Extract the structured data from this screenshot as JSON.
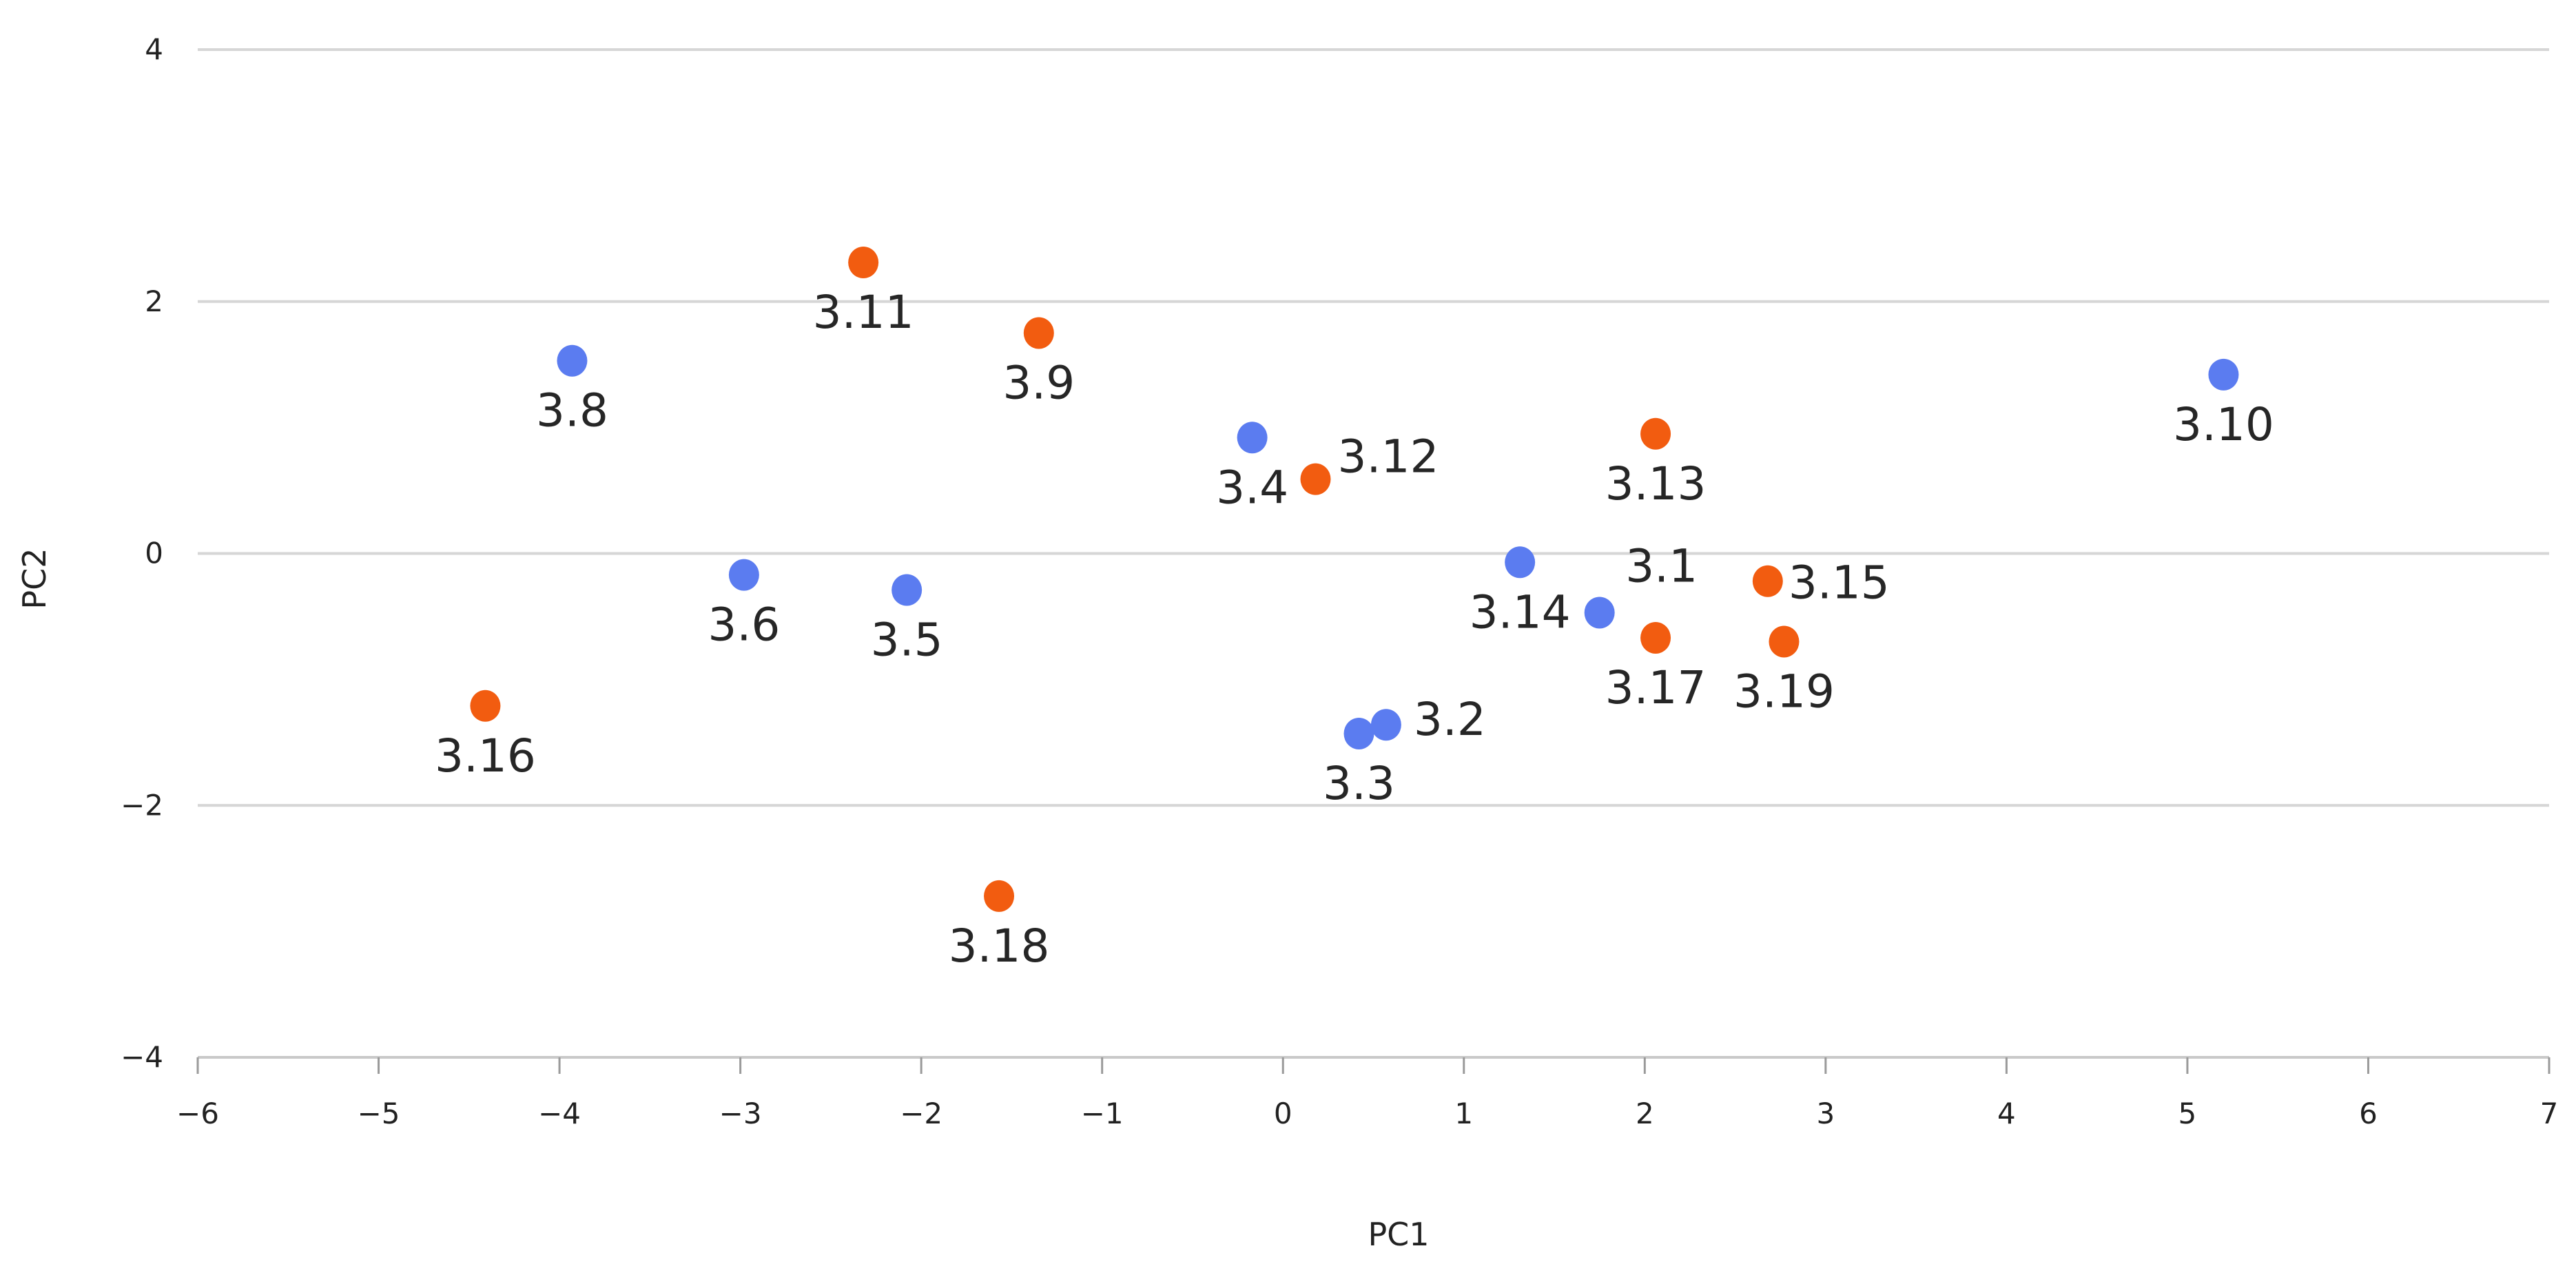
{
  "chart_data": {
    "type": "scatter",
    "title": "",
    "xlabel": "PC1",
    "ylabel": "PC2",
    "xlim": [
      -6,
      7
    ],
    "ylim": [
      -4,
      4
    ],
    "x_ticks": [
      -6,
      -5,
      -4,
      -3,
      -2,
      -1,
      0,
      1,
      2,
      3,
      4,
      5,
      6,
      7
    ],
    "y_ticks": [
      -4,
      -2,
      0,
      2,
      4
    ],
    "x_tick_labels": [
      "−6",
      "−5",
      "−4",
      "−3",
      "−2",
      "−1",
      "0",
      "1",
      "2",
      "3",
      "4",
      "5",
      "6",
      "7"
    ],
    "y_tick_labels": [
      "−4",
      "−2",
      "0",
      "2",
      "4"
    ],
    "grid": true,
    "legend": "none",
    "series": [
      {
        "name": "blue",
        "color": "#5b7cf0",
        "points": [
          {
            "label": "3.1",
            "x": 1.75,
            "y": -0.47
          },
          {
            "label": "3.2",
            "x": 0.57,
            "y": -1.36
          },
          {
            "label": "3.3",
            "x": 0.42,
            "y": -1.43
          },
          {
            "label": "3.4",
            "x": -0.17,
            "y": 0.92
          },
          {
            "label": "3.5",
            "x": -2.08,
            "y": -0.29
          },
          {
            "label": "3.6",
            "x": -2.98,
            "y": -0.17
          },
          {
            "label": "3.8",
            "x": -3.93,
            "y": 1.53
          },
          {
            "label": "3.10",
            "x": 5.2,
            "y": 1.42
          },
          {
            "label": "3.14",
            "x": 1.31,
            "y": -0.07
          }
        ]
      },
      {
        "name": "orange",
        "color": "#f25c10",
        "points": [
          {
            "label": "3.9",
            "x": -1.35,
            "y": 1.75
          },
          {
            "label": "3.11",
            "x": -2.32,
            "y": 2.31
          },
          {
            "label": "3.12",
            "x": 0.18,
            "y": 0.59
          },
          {
            "label": "3.13",
            "x": 2.06,
            "y": 0.95
          },
          {
            "label": "3.15",
            "x": 2.68,
            "y": -0.22
          },
          {
            "label": "3.16",
            "x": -4.41,
            "y": -1.21
          },
          {
            "label": "3.17",
            "x": 2.06,
            "y": -0.67
          },
          {
            "label": "3.18",
            "x": -1.57,
            "y": -2.72
          },
          {
            "label": "3.19",
            "x": 2.77,
            "y": -0.7
          }
        ]
      }
    ]
  }
}
